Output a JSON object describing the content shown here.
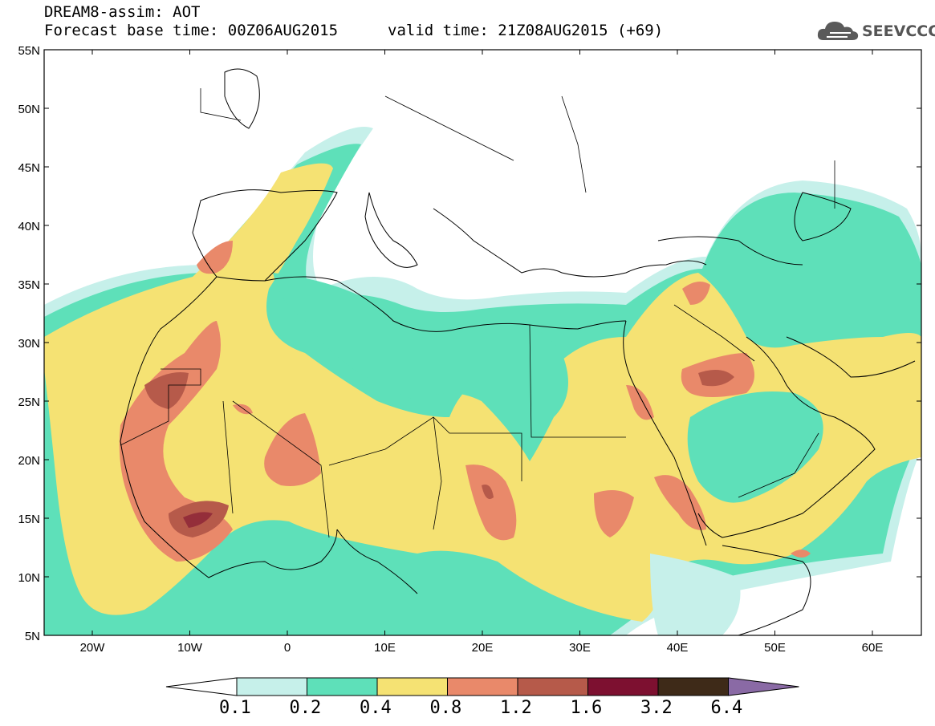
{
  "header": {
    "title_line1": "DREAM8-assim: AOT",
    "title_line2": "Forecast base time: 00Z06AUG2015",
    "valid_time": "valid time: 21Z08AUG2015 (+69)"
  },
  "logo": {
    "text": "SEEVCCC",
    "icon": "cloud-icon"
  },
  "map": {
    "lat_labels": [
      "55N",
      "50N",
      "45N",
      "40N",
      "35N",
      "30N",
      "25N",
      "20N",
      "15N",
      "10N",
      "5N"
    ],
    "lon_labels": [
      "20W",
      "10W",
      "0",
      "10E",
      "20E",
      "30E",
      "40E",
      "50E",
      "60E"
    ]
  },
  "colorbar": {
    "labels": [
      "0.1",
      "0.2",
      "0.4",
      "0.8",
      "1.2",
      "1.6",
      "3.2",
      "6.4"
    ],
    "colors": [
      "#c6f0ea",
      "#5ee0b9",
      "#f5e273",
      "#e9896a",
      "#b65a4a",
      "#7d1030",
      "#3e2a18",
      "#8a6aa5"
    ]
  }
}
